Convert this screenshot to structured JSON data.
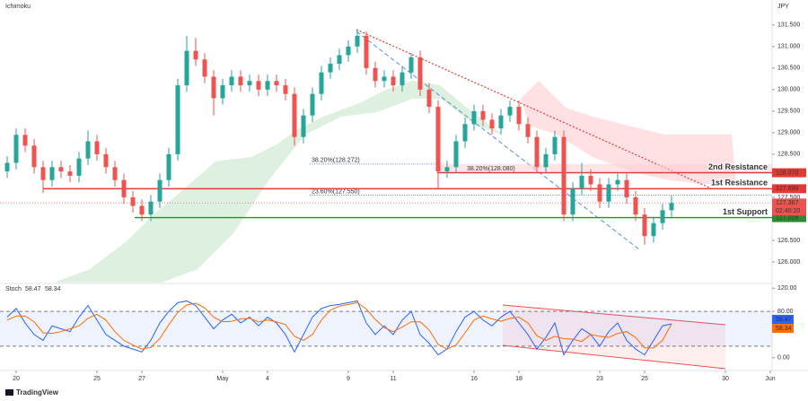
{
  "header": {
    "indicator": "Ichimoku",
    "currency": "JPY"
  },
  "chart_data": {
    "type": "candlestick",
    "up_color": "#26a69a",
    "down_color": "#ef5350",
    "candles": [
      [
        128.1,
        128.45,
        127.95,
        128.3
      ],
      [
        128.3,
        129.1,
        128.15,
        128.95
      ],
      [
        128.95,
        129.1,
        128.55,
        128.7
      ],
      [
        128.7,
        128.85,
        128.05,
        128.2
      ],
      [
        128.2,
        128.35,
        127.6,
        127.9
      ],
      [
        127.9,
        128.35,
        127.75,
        128.2
      ],
      [
        128.2,
        128.35,
        127.95,
        128.1
      ],
      [
        128.1,
        128.25,
        127.85,
        128.0
      ],
      [
        128.0,
        128.55,
        127.85,
        128.4
      ],
      [
        128.4,
        129.05,
        128.25,
        128.8
      ],
      [
        128.8,
        128.95,
        128.35,
        128.5
      ],
      [
        128.5,
        128.65,
        128.05,
        128.2
      ],
      [
        128.2,
        128.35,
        127.75,
        127.9
      ],
      [
        127.9,
        128.05,
        127.35,
        127.5
      ],
      [
        127.5,
        127.65,
        127.15,
        127.3
      ],
      [
        127.3,
        127.45,
        126.95,
        127.1
      ],
      [
        127.1,
        127.55,
        126.95,
        127.4
      ],
      [
        127.4,
        128.05,
        127.25,
        127.9
      ],
      [
        127.9,
        128.65,
        127.75,
        128.5
      ],
      [
        128.5,
        130.25,
        128.35,
        130.1
      ],
      [
        130.1,
        131.25,
        129.95,
        130.9
      ],
      [
        130.9,
        131.2,
        130.55,
        130.7
      ],
      [
        130.7,
        130.85,
        130.15,
        130.3
      ],
      [
        130.3,
        130.45,
        129.4,
        129.8
      ],
      [
        129.8,
        130.25,
        129.65,
        130.1
      ],
      [
        130.1,
        130.45,
        129.95,
        130.3
      ],
      [
        130.3,
        130.45,
        129.95,
        130.1
      ],
      [
        130.1,
        130.35,
        129.95,
        130.2
      ],
      [
        130.2,
        130.35,
        129.85,
        130.0
      ],
      [
        130.0,
        130.35,
        129.85,
        130.2
      ],
      [
        130.2,
        130.35,
        129.95,
        130.1
      ],
      [
        130.1,
        130.25,
        129.75,
        129.9
      ],
      [
        129.9,
        130.05,
        128.7,
        128.9
      ],
      [
        128.9,
        129.55,
        128.75,
        129.4
      ],
      [
        129.4,
        130.05,
        129.25,
        129.9
      ],
      [
        129.9,
        130.55,
        129.75,
        130.4
      ],
      [
        130.4,
        130.75,
        130.25,
        130.6
      ],
      [
        130.6,
        130.95,
        130.45,
        130.8
      ],
      [
        130.8,
        131.15,
        130.65,
        131.0
      ],
      [
        131.0,
        131.4,
        130.85,
        131.25
      ],
      [
        131.25,
        131.35,
        130.35,
        130.5
      ],
      [
        130.5,
        130.65,
        130.05,
        130.2
      ],
      [
        130.2,
        130.45,
        130.05,
        130.3
      ],
      [
        130.3,
        130.45,
        129.95,
        130.1
      ],
      [
        130.1,
        130.55,
        129.95,
        130.4
      ],
      [
        130.4,
        130.85,
        130.25,
        130.75
      ],
      [
        130.75,
        130.9,
        129.85,
        130.0
      ],
      [
        130.0,
        130.15,
        129.45,
        129.6
      ],
      [
        129.6,
        129.75,
        127.7,
        128.1
      ],
      [
        128.1,
        128.35,
        127.95,
        128.2
      ],
      [
        128.2,
        128.95,
        128.05,
        128.8
      ],
      [
        128.8,
        129.35,
        128.65,
        129.2
      ],
      [
        129.2,
        129.65,
        129.05,
        129.5
      ],
      [
        129.5,
        129.65,
        129.15,
        129.3
      ],
      [
        129.3,
        129.45,
        128.95,
        129.1
      ],
      [
        129.1,
        129.55,
        128.95,
        129.4
      ],
      [
        129.4,
        129.75,
        129.25,
        129.6
      ],
      [
        129.6,
        129.75,
        129.05,
        129.2
      ],
      [
        129.2,
        129.35,
        128.75,
        128.9
      ],
      [
        128.9,
        129.05,
        128.05,
        128.2
      ],
      [
        128.2,
        128.65,
        128.05,
        128.5
      ],
      [
        128.5,
        129.05,
        128.35,
        128.9
      ],
      [
        128.9,
        129.05,
        126.95,
        127.1
      ],
      [
        127.1,
        127.85,
        126.95,
        127.7
      ],
      [
        127.7,
        128.3,
        127.55,
        128.0
      ],
      [
        128.0,
        128.15,
        127.65,
        127.8
      ],
      [
        127.8,
        127.95,
        127.25,
        127.4
      ],
      [
        127.4,
        127.95,
        127.25,
        127.8
      ],
      [
        127.8,
        128.05,
        127.65,
        127.9
      ],
      [
        127.9,
        128.05,
        127.35,
        127.5
      ],
      [
        127.5,
        127.65,
        126.95,
        127.1
      ],
      [
        127.1,
        127.25,
        126.4,
        126.6
      ],
      [
        126.6,
        127.05,
        126.45,
        126.9
      ],
      [
        126.9,
        127.35,
        126.75,
        127.2
      ],
      [
        127.2,
        127.55,
        127.05,
        127.37
      ]
    ],
    "ylim": [
      125.52,
      132.08
    ],
    "yticks": [
      {
        "value": 131.5,
        "label": "131.500"
      },
      {
        "value": 131,
        "label": "131.000"
      },
      {
        "value": 130.5,
        "label": "130.500"
      },
      {
        "value": 130,
        "label": "130.000"
      },
      {
        "value": 129.5,
        "label": "129.500"
      },
      {
        "value": 129,
        "label": "129.000"
      },
      {
        "value": 128.5,
        "label": "128.500"
      },
      {
        "value": 127.5,
        "label": "127.500"
      },
      {
        "value": 126.5,
        "label": "126.500"
      },
      {
        "value": 126,
        "label": "126.000"
      }
    ],
    "x_ticks": [
      {
        "index": 1,
        "label": "20"
      },
      {
        "index": 10,
        "label": "25"
      },
      {
        "index": 15,
        "label": "27"
      },
      {
        "index": 24,
        "label": "May"
      },
      {
        "index": 29,
        "label": "4"
      },
      {
        "index": 38,
        "label": "9"
      },
      {
        "index": 43,
        "label": "11"
      },
      {
        "index": 52,
        "label": "16"
      },
      {
        "index": 57,
        "label": "18"
      },
      {
        "index": 66,
        "label": "23"
      },
      {
        "index": 71,
        "label": "25"
      },
      {
        "index": 80,
        "label": "30"
      },
      {
        "index": 85,
        "label": "Jun"
      }
    ],
    "levels": [
      {
        "name": "2nd Resistance",
        "value": 128.07,
        "label": "128.070",
        "color": "#e53935"
      },
      {
        "name": "1st Resistance",
        "value": 127.699,
        "label": "127.699",
        "color": "#e53935"
      },
      {
        "name": "1st Support",
        "value": 127.028,
        "label": "127.028",
        "color": "#2e8b2e"
      }
    ],
    "fib": [
      {
        "label": "38.20%(128.272)",
        "value": 128.272
      },
      {
        "label": "38.20%(128.080)",
        "value": 128.08
      },
      {
        "label": "23.60%(127.550)",
        "value": 127.55
      }
    ],
    "price_tag": {
      "value": 127.367,
      "label": "127.367",
      "countdown": "02:40:20",
      "color": "#ef5350"
    },
    "stoch": {
      "name": "Stoch",
      "ylim": [
        -22,
        125
      ],
      "yticks": [
        {
          "value": 120,
          "label": "120.00"
        },
        {
          "value": 80,
          "label": "80.00"
        },
        {
          "value": 0,
          "label": "0.00"
        }
      ],
      "band": [
        20,
        80
      ],
      "series": [
        {
          "name": "%K",
          "color": "#2962ff",
          "last_label": "58.47",
          "values": [
            70,
            85,
            60,
            40,
            30,
            55,
            50,
            45,
            70,
            90,
            65,
            40,
            30,
            20,
            15,
            10,
            30,
            60,
            80,
            95,
            98,
            90,
            70,
            50,
            65,
            75,
            60,
            70,
            55,
            70,
            60,
            40,
            10,
            40,
            70,
            85,
            90,
            92,
            95,
            98,
            60,
            40,
            55,
            40,
            65,
            80,
            40,
            25,
            5,
            15,
            45,
            70,
            80,
            65,
            55,
            70,
            80,
            60,
            40,
            15,
            35,
            60,
            5,
            30,
            50,
            40,
            20,
            45,
            60,
            30,
            15,
            5,
            30,
            55,
            58.47
          ]
        },
        {
          "name": "%D",
          "color": "#ff6d00",
          "last_label": "58.34",
          "values": [
            65,
            72,
            72,
            62,
            43,
            42,
            45,
            50,
            55,
            68,
            75,
            65,
            45,
            30,
            22,
            15,
            18,
            33,
            57,
            78,
            91,
            94,
            86,
            70,
            62,
            63,
            67,
            68,
            62,
            65,
            62,
            57,
            37,
            30,
            40,
            65,
            82,
            89,
            92,
            95,
            84,
            66,
            52,
            45,
            53,
            62,
            62,
            48,
            23,
            15,
            22,
            43,
            65,
            72,
            67,
            63,
            68,
            70,
            60,
            38,
            30,
            37,
            33,
            32,
            28,
            40,
            37,
            35,
            42,
            45,
            35,
            17,
            17,
            30,
            58.34
          ]
        }
      ]
    }
  },
  "footer": {
    "brand": "TradingView"
  }
}
